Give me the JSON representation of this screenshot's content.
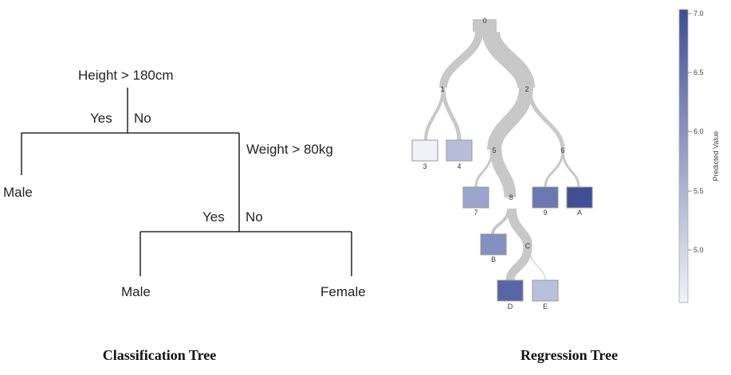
{
  "classification_tree": {
    "caption": "Classification Tree",
    "root_question": "Height > 180cm",
    "root_yes": "Yes",
    "root_no": "No",
    "root_yes_leaf": "Male",
    "second_question": "Weight > 80kg",
    "second_yes": "Yes",
    "second_no": "No",
    "second_yes_leaf": "Male",
    "second_no_leaf": "Female"
  },
  "regression_tree": {
    "caption": "Regression Tree",
    "colorbar": {
      "label": "Predicted Value",
      "ticks": [
        "7.0",
        "6.5",
        "6.0",
        "5.5",
        "5.0"
      ],
      "min_color": "#f2f3f8",
      "max_color": "#3f4e95"
    },
    "internal_nodes": [
      "0",
      "1",
      "2",
      "5",
      "6",
      "8",
      "C"
    ],
    "leaves": [
      {
        "label": "3",
        "color": "#f0f2f8"
      },
      {
        "label": "4",
        "color": "#b6bdd9"
      },
      {
        "label": "7",
        "color": "#9aa4cc"
      },
      {
        "label": "9",
        "color": "#6a77b0"
      },
      {
        "label": "A",
        "color": "#3f4e95"
      },
      {
        "label": "B",
        "color": "#8390c1"
      },
      {
        "label": "D",
        "color": "#5866a5"
      },
      {
        "label": "E",
        "color": "#b9c0db"
      }
    ]
  }
}
